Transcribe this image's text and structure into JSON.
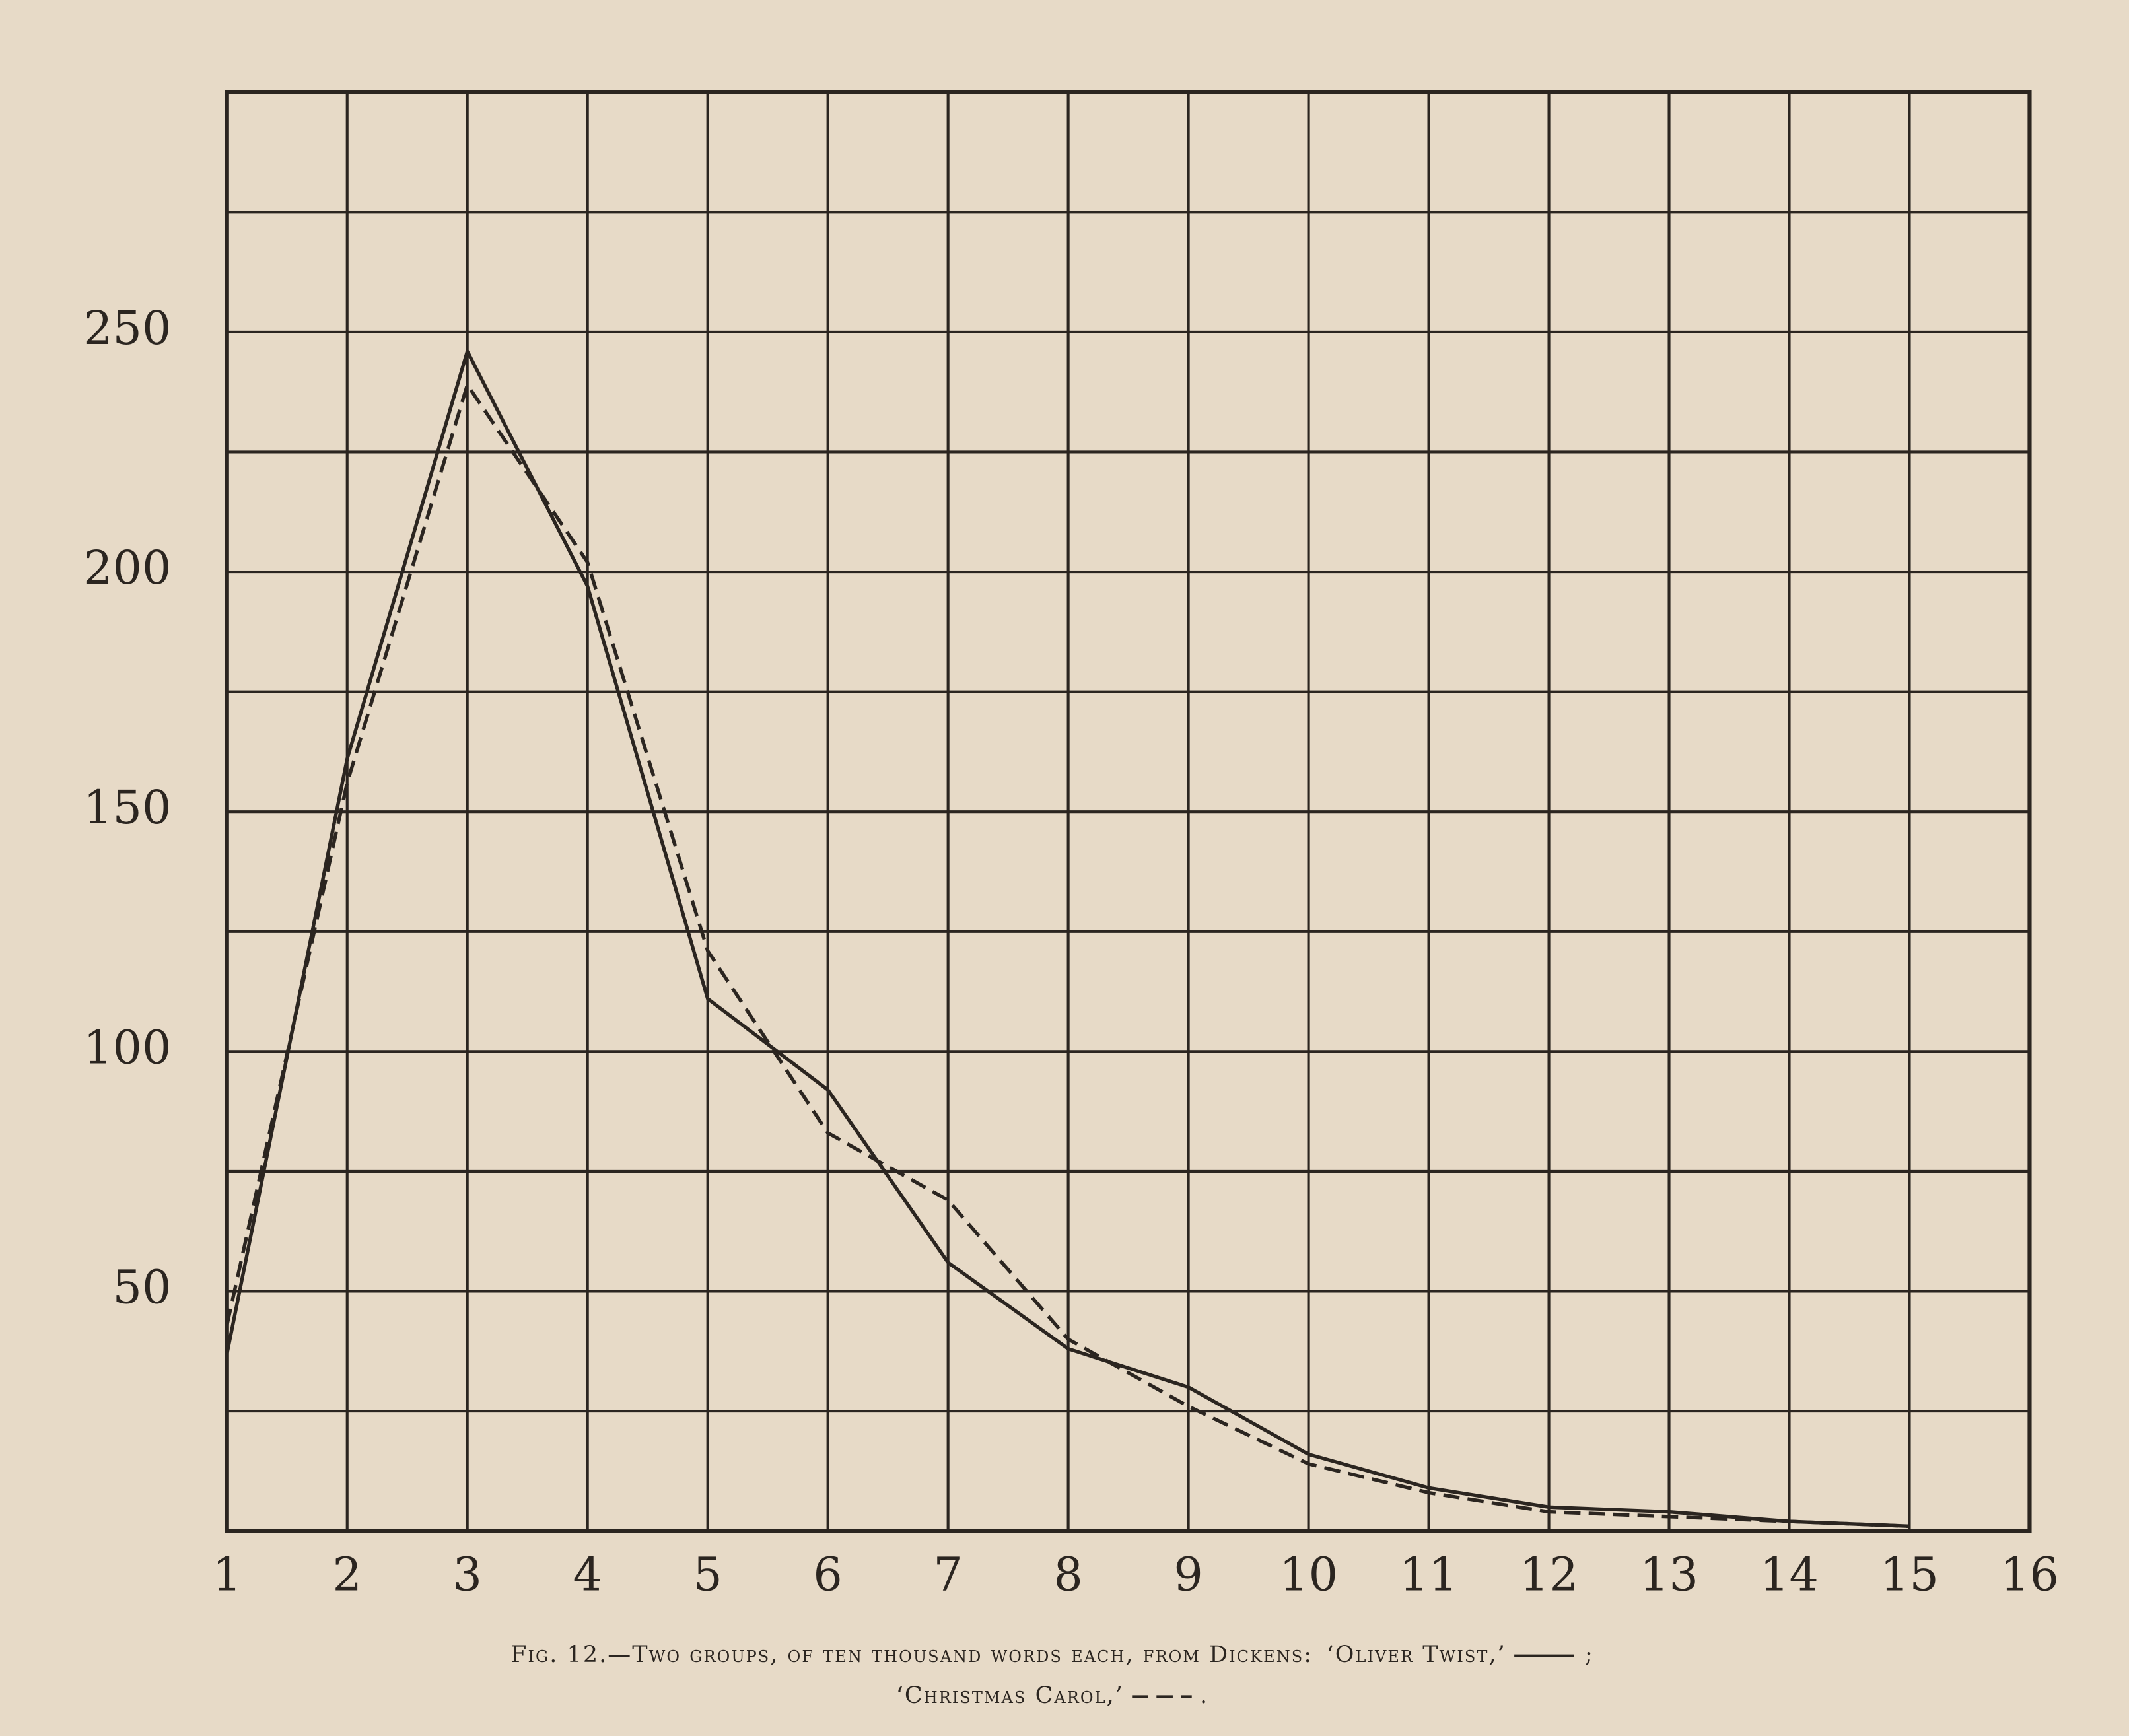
{
  "chart_data": {
    "type": "line",
    "caption": "Fig. 12.—Two groups, of ten thousand words each, from Dickens:",
    "legend_separators": [
      ";",
      "."
    ],
    "x": [
      1,
      2,
      3,
      4,
      5,
      6,
      7,
      8,
      9,
      10,
      11,
      12,
      13,
      14,
      15
    ],
    "series": [
      {
        "name": "‘Oliver Twist,’",
        "color": "#2b2520",
        "dash": "solid",
        "values": [
          37,
          161,
          246,
          197,
          111,
          92,
          56,
          38,
          30,
          16,
          9,
          5,
          4,
          2,
          1
        ]
      },
      {
        "name": "‘Christmas Carol,’",
        "color": "#2b2520",
        "dash": "dashed",
        "values": [
          43,
          156,
          239,
          202,
          121,
          83,
          69,
          40,
          26,
          14,
          8,
          4,
          3,
          2,
          1
        ]
      }
    ],
    "xlim": [
      1,
      16
    ],
    "xticks": [
      1,
      2,
      3,
      4,
      5,
      6,
      7,
      8,
      9,
      10,
      11,
      12,
      13,
      14,
      15,
      16
    ],
    "ylim": [
      0,
      300
    ],
    "yticks": [
      50,
      100,
      150,
      200,
      250
    ],
    "minor_yticks": [
      25,
      75,
      125,
      175,
      225,
      275
    ],
    "grid": true
  }
}
